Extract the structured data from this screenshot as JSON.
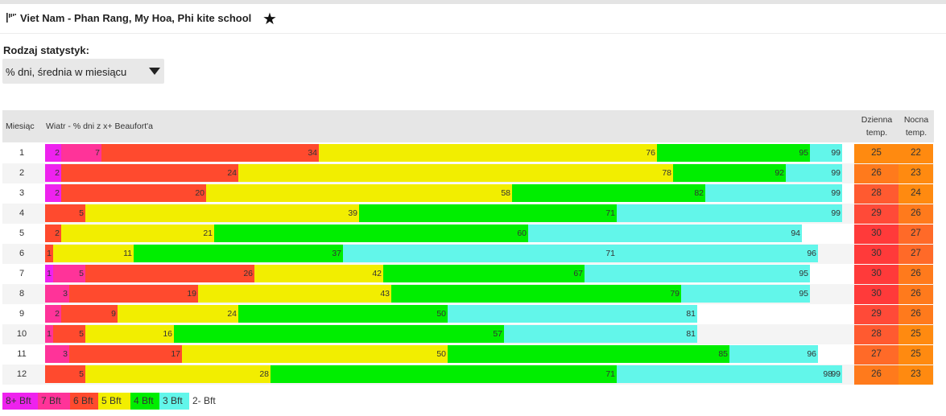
{
  "header": {
    "title": "Viet Nam - Phan Rang, My Hoa, Phi kite school"
  },
  "stats": {
    "label": "Rodzaj statystyk:",
    "selected": "% dni, średnia w miesiącu"
  },
  "table": {
    "col_month": "Miesiąc",
    "col_wind": "Wiatr - % dni z x+ Beaufort'a",
    "col_day_line1": "Dzienna",
    "col_day_line2": "temp.",
    "col_night_line1": "Nocna",
    "col_night_line2": "temp."
  },
  "colors": {
    "bft8": "#ee22ee",
    "bft7": "#ff3399",
    "bft6": "#ff4a2e",
    "bft5": "#f2ee00",
    "bft4": "#00ee00",
    "bft3": "#62f6ea",
    "bft2": "#ffffff",
    "temp": [
      "#ff8a10",
      "#ff7a1c",
      "#ff6a28",
      "#ff5a30",
      "#ff4a38",
      "#ff3a3a"
    ]
  },
  "chart_data": {
    "type": "bar",
    "title": "Wiatr - % dni z x+ Beaufort'a",
    "xlim": [
      0,
      100
    ],
    "series_names": [
      "8+ Bft",
      "7 Bft",
      "6 Bft",
      "5 Bft",
      "4 Bft",
      "3 Bft",
      "2- Bft"
    ],
    "rows": [
      {
        "month": "1",
        "cum": [
          2,
          7,
          34,
          76,
          95,
          99
        ],
        "labels": [
          "2",
          "7",
          "34",
          "76",
          "95",
          "99"
        ],
        "day": 25,
        "night": 22
      },
      {
        "month": "2",
        "cum": [
          2,
          2,
          24,
          78,
          92,
          99
        ],
        "labels": [
          "2",
          "",
          "24",
          "78",
          "92",
          "99"
        ],
        "day": 26,
        "night": 23
      },
      {
        "month": "3",
        "cum": [
          2,
          2,
          20,
          58,
          82,
          99
        ],
        "labels": [
          "2",
          "",
          "20",
          "58",
          "82",
          "99"
        ],
        "day": 28,
        "night": 24
      },
      {
        "month": "4",
        "cum": [
          0,
          0,
          5,
          39,
          71,
          99
        ],
        "labels": [
          "",
          "",
          "5",
          "39",
          "71",
          "99"
        ],
        "day": 29,
        "night": 26
      },
      {
        "month": "5",
        "cum": [
          0,
          0,
          2,
          21,
          60,
          94
        ],
        "labels": [
          "",
          "",
          "2",
          "21",
          "60",
          "94"
        ],
        "day": 30,
        "night": 27
      },
      {
        "month": "6",
        "cum": [
          0,
          0,
          1,
          11,
          37,
          71,
          96
        ],
        "labels": [
          "",
          "",
          "1",
          "11",
          "37",
          "71",
          "96"
        ],
        "day": 30,
        "night": 27,
        "shift": true
      },
      {
        "month": "7",
        "cum": [
          1,
          5,
          26,
          42,
          67,
          95
        ],
        "labels": [
          "1",
          "5",
          "26",
          "42",
          "67",
          "95"
        ],
        "day": 30,
        "night": 26
      },
      {
        "month": "8",
        "cum": [
          0,
          3,
          19,
          43,
          79,
          95
        ],
        "labels": [
          "",
          "3",
          "19",
          "43",
          "79",
          "95"
        ],
        "day": 30,
        "night": 26
      },
      {
        "month": "9",
        "cum": [
          0,
          2,
          9,
          24,
          50,
          81
        ],
        "labels": [
          "",
          "2",
          "9",
          "24",
          "50",
          "81"
        ],
        "day": 29,
        "night": 26
      },
      {
        "month": "10",
        "cum": [
          0,
          1,
          5,
          16,
          57,
          81
        ],
        "labels": [
          "",
          "1",
          "5",
          "16",
          "57",
          "81"
        ],
        "day": 28,
        "night": 25
      },
      {
        "month": "11",
        "cum": [
          0,
          3,
          17,
          50,
          85,
          96
        ],
        "labels": [
          "",
          "3",
          "17",
          "50",
          "85",
          "96"
        ],
        "day": 27,
        "night": 25
      },
      {
        "month": "12",
        "cum": [
          0,
          0,
          5,
          28,
          71,
          98,
          99
        ],
        "labels": [
          "",
          "",
          "5",
          "28",
          "71",
          "98",
          "99"
        ],
        "day": 26,
        "night": 23,
        "shift": true
      }
    ]
  },
  "legend": [
    {
      "label": "8+ Bft",
      "color": "#ee22ee"
    },
    {
      "label": "7 Bft",
      "color": "#ff3399"
    },
    {
      "label": "6 Bft",
      "color": "#ff4a2e"
    },
    {
      "label": "5 Bft",
      "color": "#f2ee00"
    },
    {
      "label": "4 Bft",
      "color": "#00ee00"
    },
    {
      "label": "3 Bft",
      "color": "#62f6ea"
    },
    {
      "label": "2- Bft",
      "color": "#ffffff"
    }
  ],
  "icons": {
    "flag": "flag-icon",
    "star": "star-icon",
    "dropdown": "chevron-down-icon"
  }
}
